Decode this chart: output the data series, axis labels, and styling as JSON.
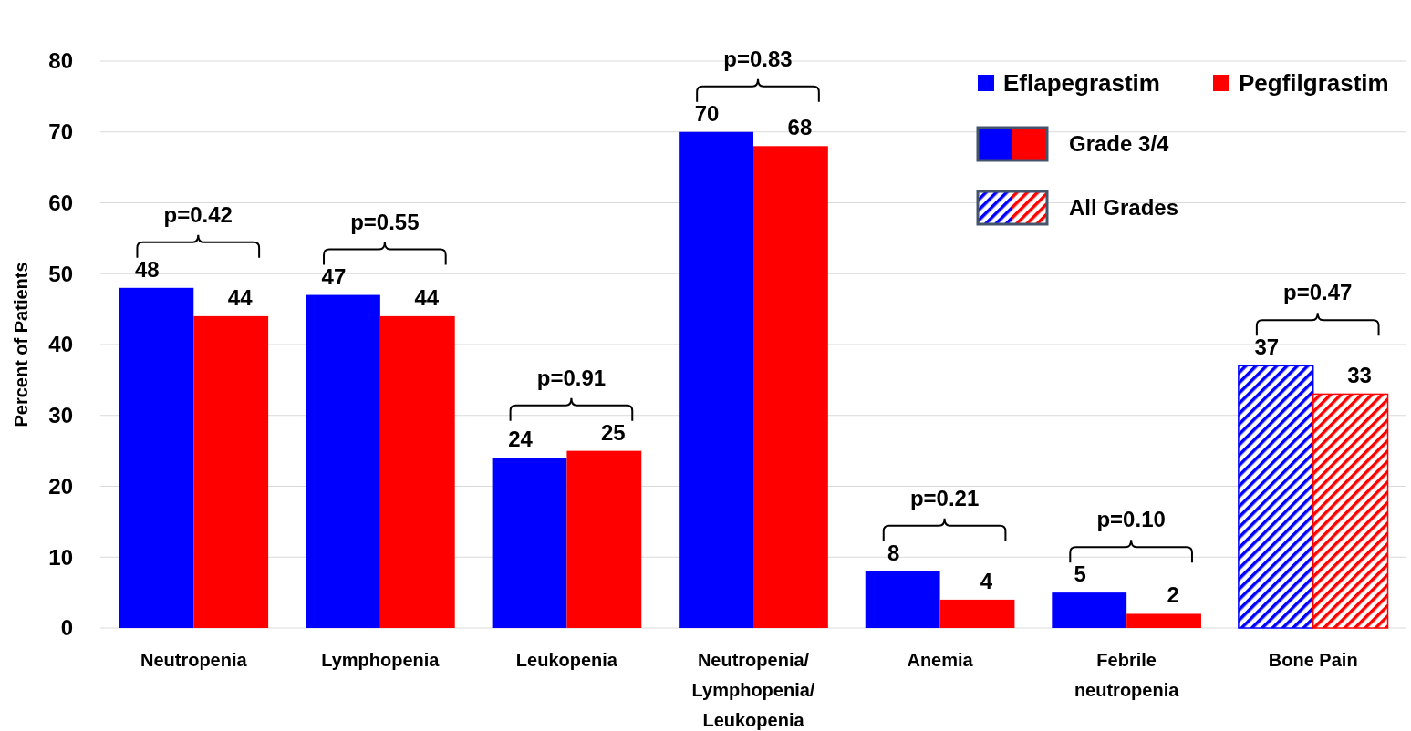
{
  "chart_data": {
    "type": "bar",
    "ylabel": "Percent of Patients",
    "categories": [
      "Neutropenia",
      "Lymphopenia",
      "Leukopenia",
      "Neutropenia/ Lymphopenia/ Leukopenia",
      "Anemia",
      "Febrile neutropenia",
      "Bone Pain"
    ],
    "series": [
      {
        "name": "Eflapegrastim",
        "color": "#0000ff",
        "values": [
          48,
          47,
          24,
          70,
          8,
          5,
          37
        ]
      },
      {
        "name": "Pegfilgrastim",
        "color": "#ff0000",
        "values": [
          44,
          44,
          25,
          68,
          4,
          2,
          33
        ]
      }
    ],
    "ylim": [
      0,
      80
    ],
    "yticks": [
      0,
      10,
      20,
      30,
      40,
      50,
      60,
      70,
      80
    ],
    "grid": "y",
    "legend": "top right",
    "data_labels": true,
    "annotations": [
      {
        "text": "p=0.42",
        "x": "Neutropenia",
        "y": 48
      },
      {
        "text": "p=0.55",
        "x": "Lymphopenia",
        "y": 47
      },
      {
        "text": "p=0.91",
        "x": "Leukopenia",
        "y": 25
      },
      {
        "text": "p=0.83",
        "x": "Neutropenia/ Lymphopenia/ Leukopenia",
        "y": 70
      },
      {
        "text": "p=0.21",
        "x": "Anemia",
        "y": 8
      },
      {
        "text": "p=0.10",
        "x": "Febrile neutropenia",
        "y": 5
      },
      {
        "text": "p=0.47",
        "x": "Bone Pain",
        "y": 37
      },
      "Grade 3/4",
      "All Grades"
    ]
  }
}
